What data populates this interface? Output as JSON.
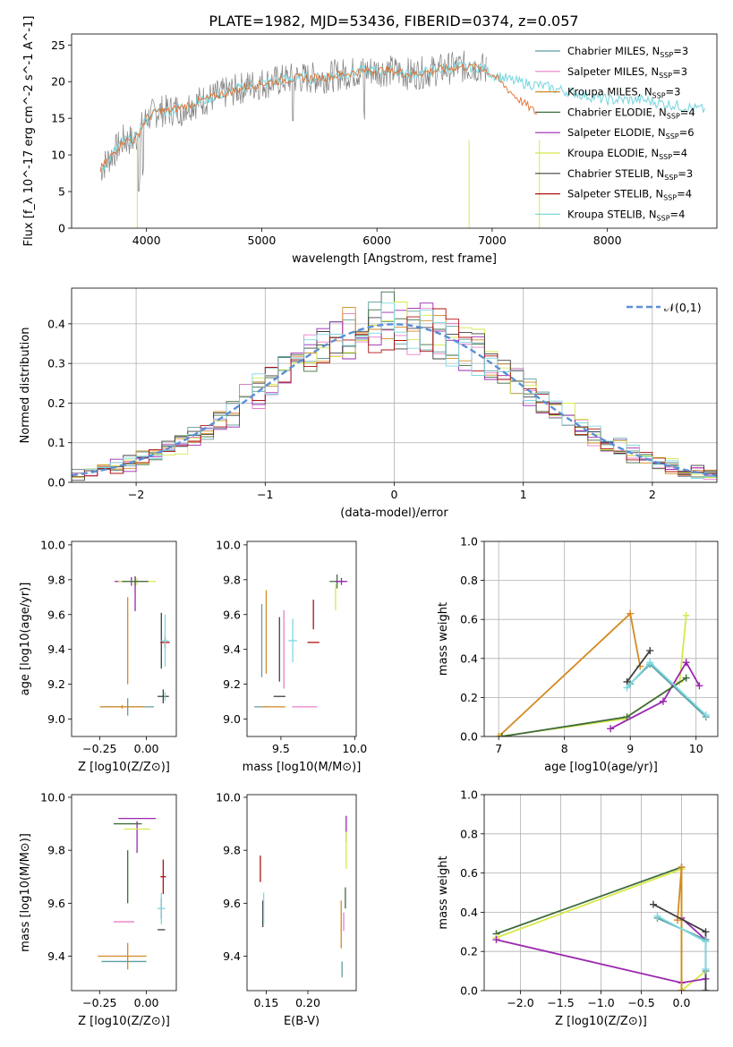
{
  "figure": {
    "title": "PLATE=1982, MJD=53436, FIBERID=0374, z=0.057"
  },
  "series_styles": [
    {
      "name": "Chabrier MILES",
      "nssp": "3",
      "color": "#5f9ea0"
    },
    {
      "name": "Salpeter MILES",
      "nssp": "3",
      "color": "#e87ec8"
    },
    {
      "name": "Kroupa MILES",
      "nssp": "3",
      "color": "#d48a22"
    },
    {
      "name": "Chabrier ELODIE",
      "nssp": "4",
      "color": "#3f6b3f"
    },
    {
      "name": "Salpeter ELODIE",
      "nssp": "6",
      "color": "#9b27b0"
    },
    {
      "name": "Kroupa ELODIE",
      "nssp": "4",
      "color": "#d8e84a"
    },
    {
      "name": "Chabrier STELIB",
      "nssp": "3",
      "color": "#404040"
    },
    {
      "name": "Salpeter STELIB",
      "nssp": "4",
      "color": "#b01010"
    },
    {
      "name": "Kroupa STELIB",
      "nssp": "4",
      "color": "#7fd8e0"
    }
  ],
  "chart_data": [
    {
      "id": "spectrum",
      "type": "line",
      "xlabel": "wavelength [Angstrom, rest frame]",
      "ylabel": "Flux [f_λ 10^-17 erg cm^-2 s^-1 A^-1]",
      "xlim": [
        3350,
        8950
      ],
      "ylim": [
        0,
        26.5
      ],
      "xticks": [
        4000,
        5000,
        6000,
        7000,
        8000
      ],
      "yticks": [
        0,
        5,
        10,
        15,
        20,
        25
      ],
      "grid": false,
      "legend": "top-right",
      "observed_color": "#808080",
      "model_color": "#7fd8e0",
      "orange_color": "#e07030",
      "anchors": [
        [
          3600,
          8
        ],
        [
          3700,
          10
        ],
        [
          3800,
          12
        ],
        [
          3900,
          12
        ],
        [
          4000,
          15
        ],
        [
          4100,
          16
        ],
        [
          4200,
          16
        ],
        [
          4300,
          16.5
        ],
        [
          4500,
          17.5
        ],
        [
          4700,
          18.5
        ],
        [
          4900,
          19.5
        ],
        [
          5100,
          20
        ],
        [
          5300,
          20.5
        ],
        [
          5500,
          20.5
        ],
        [
          5700,
          21
        ],
        [
          5900,
          21.5
        ],
        [
          6100,
          21.5
        ],
        [
          6300,
          21
        ],
        [
          6500,
          21.5
        ],
        [
          6700,
          22
        ],
        [
          6900,
          22
        ],
        [
          7000,
          21
        ],
        [
          7200,
          20
        ],
        [
          7400,
          19.5
        ],
        [
          7700,
          18.5
        ],
        [
          8000,
          17.5
        ],
        [
          8300,
          17.5
        ],
        [
          8500,
          17
        ],
        [
          8700,
          16.5
        ],
        [
          8900,
          16
        ]
      ]
    },
    {
      "id": "residuals",
      "type": "histogram",
      "xlabel": "(data-model)/error",
      "ylabel": "Normed distribution",
      "xlim": [
        -2.5,
        2.5
      ],
      "ylim": [
        0,
        0.49
      ],
      "xticks": [
        -2,
        -1,
        0,
        1,
        2
      ],
      "yticks": [
        0.0,
        0.1,
        0.2,
        0.3,
        0.4
      ],
      "grid": true,
      "legend_label": "𝒩(0,1)",
      "gaussian_color": "#5b8fd6",
      "bin_width": 0.1
    },
    {
      "id": "age-vs-Z",
      "type": "errorbar",
      "xlabel": "Z [log10(Z/Z⊙)]",
      "ylabel": "age  [log10(age/yr)]",
      "xlim": [
        -0.4,
        0.16
      ],
      "ylim": [
        8.9,
        10.02
      ],
      "xticks": [
        -0.25,
        0.0
      ],
      "yticks": [
        9.0,
        9.2,
        9.4,
        9.6,
        9.8,
        10.0
      ],
      "grid": false,
      "points": [
        {
          "s": 0,
          "x": -0.1,
          "y": 9.07,
          "xe": 0.28,
          "ye": 0.1
        },
        {
          "s": 2,
          "x": -0.13,
          "y": 9.07,
          "xe": 0.24,
          "ye": 0.02
        },
        {
          "s": 2,
          "x": -0.1,
          "y": 9.45,
          "xe": 0.0,
          "ye": 0.5
        },
        {
          "s": 4,
          "x": -0.08,
          "y": 9.79,
          "xe": 0.18,
          "ye": 0.05
        },
        {
          "s": 4,
          "x": -0.06,
          "y": 9.72,
          "xe": 0.0,
          "ye": 0.2
        },
        {
          "s": 5,
          "x": -0.05,
          "y": 9.79,
          "xe": 0.2,
          "ye": 0.04
        },
        {
          "s": 3,
          "x": -0.06,
          "y": 9.79,
          "xe": 0.14,
          "ye": 0.05
        },
        {
          "s": 6,
          "x": 0.08,
          "y": 9.45,
          "xe": 0.0,
          "ye": 0.32
        },
        {
          "s": 6,
          "x": 0.09,
          "y": 9.13,
          "xe": 0.06,
          "ye": 0.08
        },
        {
          "s": 7,
          "x": 0.1,
          "y": 9.44,
          "xe": 0.05,
          "ye": 0.07
        },
        {
          "s": 8,
          "x": 0.1,
          "y": 9.45,
          "xe": 0.04,
          "ye": 0.3
        },
        {
          "s": 8,
          "x": 0.1,
          "y": 9.13,
          "xe": 0.0,
          "ye": 0.05
        }
      ]
    },
    {
      "id": "age-vs-mass",
      "type": "errorbar",
      "xlabel": "mass [log10(M/M⊙)]",
      "ylabel": "",
      "xlim": [
        9.27,
        10.01
      ],
      "ylim": [
        8.9,
        10.02
      ],
      "xticks": [
        9.5,
        10.0
      ],
      "yticks": [
        9.0,
        9.2,
        9.4,
        9.6,
        9.8,
        10.0
      ],
      "grid": false,
      "points": [
        {
          "s": 0,
          "x": 9.37,
          "y": 9.07,
          "xe": 0.1,
          "ye": 0.0
        },
        {
          "s": 0,
          "x": 9.37,
          "y": 9.45,
          "xe": 0.0,
          "ye": 0.42
        },
        {
          "s": 2,
          "x": 9.4,
          "y": 9.5,
          "xe": 0.0,
          "ye": 0.48
        },
        {
          "s": 2,
          "x": 9.45,
          "y": 9.07,
          "xe": 0.16,
          "ye": 0.0
        },
        {
          "s": 1,
          "x": 9.52,
          "y": 9.4,
          "xe": 0.0,
          "ye": 0.45
        },
        {
          "s": 1,
          "x": 9.66,
          "y": 9.07,
          "xe": 0.17,
          "ye": 0.0
        },
        {
          "s": 6,
          "x": 9.49,
          "y": 9.13,
          "xe": 0.08,
          "ye": 0.0
        },
        {
          "s": 6,
          "x": 9.49,
          "y": 9.4,
          "xe": 0.0,
          "ye": 0.37
        },
        {
          "s": 8,
          "x": 9.58,
          "y": 9.45,
          "xe": 0.06,
          "ye": 0.25
        },
        {
          "s": 7,
          "x": 9.72,
          "y": 9.44,
          "xe": 0.08,
          "ye": 0.0
        },
        {
          "s": 7,
          "x": 9.72,
          "y": 9.6,
          "xe": 0.0,
          "ye": 0.17
        },
        {
          "s": 3,
          "x": 9.88,
          "y": 9.79,
          "xe": 0.1,
          "ye": 0.08
        },
        {
          "s": 4,
          "x": 9.91,
          "y": 9.79,
          "xe": 0.08,
          "ye": 0.04
        },
        {
          "s": 5,
          "x": 9.87,
          "y": 9.7,
          "xe": 0.0,
          "ye": 0.15
        }
      ]
    },
    {
      "id": "massweight-vs-age",
      "type": "line",
      "xlabel": "age  [log10(age/yr)]",
      "ylabel": "mass weight",
      "xlim": [
        6.78,
        10.33
      ],
      "ylim": [
        0.0,
        1.0
      ],
      "xticks": [
        7,
        8,
        9,
        10
      ],
      "yticks": [
        0.0,
        0.2,
        0.4,
        0.6,
        0.8,
        1.0
      ],
      "grid": true,
      "series": [
        {
          "s": 2,
          "points": [
            [
              7.0,
              0.0
            ],
            [
              9.0,
              0.63
            ],
            [
              9.15,
              0.36
            ]
          ]
        },
        {
          "s": 0,
          "points": [
            [
              9.0,
              0.27
            ],
            [
              9.3,
              0.37
            ],
            [
              10.15,
              0.1
            ]
          ]
        },
        {
          "s": 6,
          "points": [
            [
              8.95,
              0.28
            ],
            [
              9.3,
              0.44
            ]
          ]
        },
        {
          "s": 5,
          "points": [
            [
              7.02,
              0.0
            ],
            [
              8.9,
              0.09
            ],
            [
              9.75,
              0.28
            ],
            [
              9.85,
              0.62
            ]
          ]
        },
        {
          "s": 4,
          "points": [
            [
              8.7,
              0.04
            ],
            [
              9.5,
              0.18
            ],
            [
              9.85,
              0.38
            ],
            [
              10.05,
              0.26
            ]
          ]
        },
        {
          "s": 3,
          "points": [
            [
              7.05,
              0.0
            ],
            [
              8.95,
              0.1
            ],
            [
              9.85,
              0.3
            ]
          ]
        },
        {
          "s": 8,
          "points": [
            [
              8.95,
              0.25
            ],
            [
              9.3,
              0.38
            ],
            [
              10.15,
              0.11
            ]
          ]
        }
      ]
    },
    {
      "id": "mass-vs-Z",
      "type": "errorbar",
      "xlabel": "Z [log10(Z/Z⊙)]",
      "ylabel": "mass [log10(M/M⊙)]",
      "xlim": [
        -0.4,
        0.16
      ],
      "ylim": [
        9.27,
        10.01
      ],
      "xticks": [
        -0.25,
        0.0
      ],
      "yticks": [
        9.4,
        9.6,
        9.8,
        10.0
      ],
      "grid": false,
      "points": [
        {
          "s": 0,
          "x": -0.12,
          "y": 9.38,
          "xe": 0.24,
          "ye": 0.0
        },
        {
          "s": 2,
          "x": -0.13,
          "y": 9.4,
          "xe": 0.26,
          "ye": 0.0
        },
        {
          "s": 2,
          "x": -0.1,
          "y": 9.4,
          "xe": 0.0,
          "ye": 0.1
        },
        {
          "s": 1,
          "x": -0.12,
          "y": 9.53,
          "xe": 0.11,
          "ye": 0.0
        },
        {
          "s": 3,
          "x": -0.1,
          "y": 9.9,
          "xe": 0.15,
          "ye": 0.0
        },
        {
          "s": 3,
          "x": -0.1,
          "y": 9.7,
          "xe": 0.0,
          "ye": 0.2
        },
        {
          "s": 4,
          "x": -0.05,
          "y": 9.92,
          "xe": 0.2,
          "ye": 0.0
        },
        {
          "s": 4,
          "x": -0.05,
          "y": 9.85,
          "xe": 0.0,
          "ye": 0.12
        },
        {
          "s": 5,
          "x": -0.05,
          "y": 9.88,
          "xe": 0.14,
          "ye": 0.0
        },
        {
          "s": 6,
          "x": 0.08,
          "y": 9.5,
          "xe": 0.04,
          "ye": 0.0
        },
        {
          "s": 6,
          "x": 0.08,
          "y": 9.58,
          "xe": 0.0,
          "ye": 0.08
        },
        {
          "s": 7,
          "x": 0.09,
          "y": 9.7,
          "xe": 0.03,
          "ye": 0.13
        },
        {
          "s": 8,
          "x": 0.08,
          "y": 9.58,
          "xe": 0.04,
          "ye": 0.12
        }
      ]
    },
    {
      "id": "mass-vs-ebv",
      "type": "errorbar",
      "xlabel": "E(B-V)",
      "ylabel": "",
      "xlim": [
        0.127,
        0.258
      ],
      "ylim": [
        9.27,
        10.01
      ],
      "xticks": [
        0.15,
        0.2
      ],
      "yticks": [
        9.4,
        9.6,
        9.8,
        10.0
      ],
      "grid": false,
      "points": [
        {
          "s": 7,
          "x": 0.143,
          "y": 9.73,
          "xe": 0.0,
          "ye": 0.1
        },
        {
          "s": 6,
          "x": 0.146,
          "y": 9.56,
          "xe": 0.0,
          "ye": 0.1
        },
        {
          "s": 8,
          "x": 0.147,
          "y": 9.58,
          "xe": 0.0,
          "ye": 0.12
        },
        {
          "s": 2,
          "x": 0.24,
          "y": 9.52,
          "xe": 0.0,
          "ye": 0.18
        },
        {
          "s": 0,
          "x": 0.241,
          "y": 9.35,
          "xe": 0.0,
          "ye": 0.06
        },
        {
          "s": 1,
          "x": 0.243,
          "y": 9.53,
          "xe": 0.0,
          "ye": 0.07
        },
        {
          "s": 4,
          "x": 0.246,
          "y": 9.88,
          "xe": 0.0,
          "ye": 0.1
        },
        {
          "s": 5,
          "x": 0.246,
          "y": 9.8,
          "xe": 0.0,
          "ye": 0.14
        },
        {
          "s": 3,
          "x": 0.245,
          "y": 9.62,
          "xe": 0.0,
          "ye": 0.08
        }
      ]
    },
    {
      "id": "massweight-vs-Z",
      "type": "line",
      "xlabel": "Z [log10(Z/Z⊙)]",
      "ylabel": "mass weight",
      "xlim": [
        -2.45,
        0.45
      ],
      "ylim": [
        0.0,
        1.0
      ],
      "xticks": [
        -2.0,
        -1.5,
        -1.0,
        -0.5,
        0.0
      ],
      "yticks": [
        0.0,
        0.2,
        0.4,
        0.6,
        0.8,
        1.0
      ],
      "grid": true,
      "series": [
        {
          "s": 3,
          "points": [
            [
              -2.3,
              0.29
            ],
            [
              0.0,
              0.63
            ],
            [
              0.0,
              0.0
            ]
          ]
        },
        {
          "s": 5,
          "points": [
            [
              -2.3,
              0.27
            ],
            [
              0.0,
              0.62
            ],
            [
              0.0,
              0.0
            ],
            [
              0.3,
              0.1
            ]
          ]
        },
        {
          "s": 4,
          "points": [
            [
              -2.3,
              0.26
            ],
            [
              0.0,
              0.04
            ],
            [
              0.3,
              0.06
            ],
            [
              0.3,
              0.26
            ],
            [
              0.0,
              0.37
            ]
          ]
        },
        {
          "s": 2,
          "points": [
            [
              -0.05,
              0.36
            ],
            [
              0.0,
              0.63
            ],
            [
              0.0,
              0.0
            ]
          ]
        },
        {
          "s": 6,
          "points": [
            [
              -0.35,
              0.44
            ],
            [
              0.3,
              0.3
            ],
            [
              0.3,
              0.0
            ]
          ]
        },
        {
          "s": 0,
          "points": [
            [
              -0.3,
              0.37
            ],
            [
              0.3,
              0.26
            ],
            [
              0.3,
              0.1
            ]
          ]
        },
        {
          "s": 8,
          "points": [
            [
              -0.3,
              0.38
            ],
            [
              0.3,
              0.25
            ],
            [
              0.3,
              0.11
            ]
          ]
        }
      ]
    }
  ]
}
